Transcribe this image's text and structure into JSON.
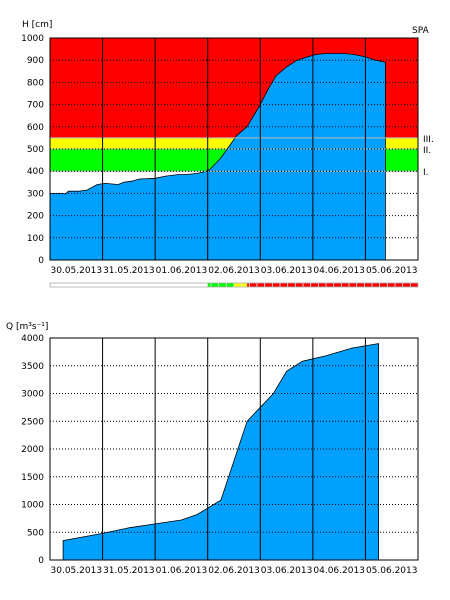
{
  "chart_data": [
    {
      "type": "area",
      "ylabel": "H [cm]",
      "station": "SPA",
      "ylim": [
        0,
        1000
      ],
      "yticks": [
        0,
        100,
        200,
        300,
        400,
        500,
        600,
        700,
        800,
        900,
        1000
      ],
      "date_labels": [
        "30.05.2013",
        "31.05.2013",
        "01.06.2013",
        "02.06.2013",
        "03.06.2013",
        "04.06.2013",
        "05.06.2013"
      ],
      "xlim_days": [
        0,
        7
      ],
      "thresholds": [
        {
          "label": "I.",
          "value": 400,
          "color": "#00ff00"
        },
        {
          "label": "II.",
          "value": 500,
          "color": "#ffff00"
        },
        {
          "label": "III.",
          "value": 550,
          "color": "#ff0000"
        }
      ],
      "colors": {
        "fill": "#00a0ff",
        "danger": "#ff0000",
        "warning": "#ffff00",
        "alert": "#00ff00",
        "line": "#bbbbbb"
      },
      "series": [
        {
          "x": [
            0,
            0.15,
            0.3,
            0.35,
            0.55,
            0.7,
            0.9,
            1.05,
            1.3,
            1.4,
            1.55,
            1.7,
            2.0,
            2.2,
            2.45,
            2.6,
            2.8,
            2.95,
            3.05,
            3.25,
            3.55,
            3.75,
            4.0,
            4.15,
            4.3,
            4.5,
            4.7,
            4.9,
            5.05,
            5.25,
            5.4,
            5.6,
            5.8,
            6.0,
            6.2,
            6.38
          ],
          "y": [
            300,
            300,
            298,
            310,
            310,
            315,
            340,
            345,
            340,
            350,
            355,
            365,
            368,
            378,
            385,
            385,
            390,
            398,
            410,
            460,
            560,
            600,
            700,
            770,
            830,
            870,
            900,
            915,
            925,
            930,
            930,
            930,
            925,
            915,
            900,
            890
          ]
        }
      ]
    },
    {
      "type": "area",
      "ylabel": "Q [m³s⁻¹]",
      "ylim": [
        0,
        4000
      ],
      "yticks": [
        0,
        500,
        1000,
        1500,
        2000,
        2500,
        3000,
        3500,
        4000
      ],
      "date_labels": [
        "30.05.2013",
        "31.05.2013",
        "01.06.2013",
        "02.06.2013",
        "03.06.2013",
        "04.06.2013",
        "05.06.2013"
      ],
      "xlim_days": [
        0,
        7
      ],
      "colors": {
        "fill": "#00a0ff"
      },
      "series": [
        {
          "x": [
            0.25,
            1.0,
            1.5,
            2.0,
            2.5,
            2.8,
            3.25,
            3.75,
            4.25,
            4.5,
            4.8,
            5.25,
            5.75,
            6.25
          ],
          "y": [
            350,
            480,
            580,
            650,
            720,
            820,
            1080,
            2500,
            3000,
            3400,
            3580,
            3680,
            3820,
            3900
          ]
        }
      ]
    }
  ],
  "status_bar": {
    "colors": {
      "none": "#ffffff",
      "alert": "#00ff00",
      "warning": "#ffff00",
      "danger": "#ff0000",
      "border": "#aaaaaa"
    },
    "segments": [
      {
        "to_day": 3.0,
        "level": "none"
      },
      {
        "to_day": 3.5,
        "level": "alert"
      },
      {
        "to_day": 3.75,
        "level": "warning"
      },
      {
        "to_day": 7.0,
        "level": "danger"
      }
    ]
  }
}
